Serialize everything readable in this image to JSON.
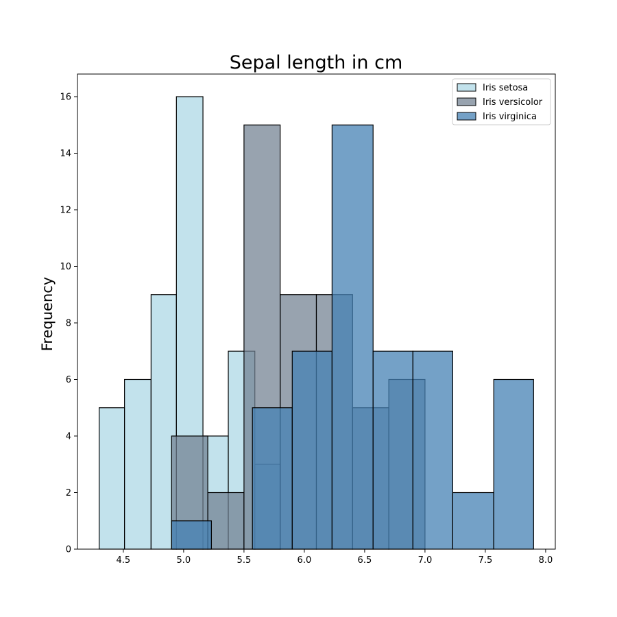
{
  "chart_data": {
    "type": "histogram",
    "title": "Sepal length in cm",
    "xlabel": "",
    "ylabel": "Frequency",
    "xlim": [
      4.12,
      8.08
    ],
    "ylim": [
      0,
      16.8
    ],
    "xticks": [
      "4.5",
      "5.0",
      "5.5",
      "6.0",
      "6.5",
      "7.0",
      "7.5",
      "8.0"
    ],
    "yticks": [
      "0",
      "2",
      "4",
      "6",
      "8",
      "10",
      "12",
      "14",
      "16"
    ],
    "grid": false,
    "legend_position": "top-right",
    "series": [
      {
        "name": "Iris setosa",
        "color": "#add8e6",
        "opacity": 0.75,
        "bins": [
          {
            "x0": 4.3,
            "x1": 4.51,
            "count": 5
          },
          {
            "x0": 4.51,
            "x1": 4.73,
            "count": 6
          },
          {
            "x0": 4.73,
            "x1": 4.94,
            "count": 9
          },
          {
            "x0": 4.94,
            "x1": 5.16,
            "count": 16
          },
          {
            "x0": 5.16,
            "x1": 5.37,
            "count": 4
          },
          {
            "x0": 5.37,
            "x1": 5.59,
            "count": 7
          },
          {
            "x0": 5.59,
            "x1": 5.8,
            "count": 3
          }
        ]
      },
      {
        "name": "Iris versicolor",
        "color": "#708090",
        "opacity": 0.72,
        "bins": [
          {
            "x0": 4.9,
            "x1": 5.2,
            "count": 4
          },
          {
            "x0": 5.2,
            "x1": 5.5,
            "count": 2
          },
          {
            "x0": 5.5,
            "x1": 5.8,
            "count": 15
          },
          {
            "x0": 5.8,
            "x1": 6.1,
            "count": 9
          },
          {
            "x0": 6.1,
            "x1": 6.4,
            "count": 9
          },
          {
            "x0": 6.4,
            "x1": 6.7,
            "count": 5
          },
          {
            "x0": 6.7,
            "x1": 7.0,
            "count": 6
          }
        ]
      },
      {
        "name": "Iris virginica",
        "color": "#4682b4",
        "opacity": 0.75,
        "bins": [
          {
            "x0": 4.9,
            "x1": 5.23,
            "count": 1
          },
          {
            "x0": 5.57,
            "x1": 5.9,
            "count": 5
          },
          {
            "x0": 5.9,
            "x1": 6.23,
            "count": 7
          },
          {
            "x0": 6.23,
            "x1": 6.57,
            "count": 15
          },
          {
            "x0": 6.57,
            "x1": 6.9,
            "count": 7
          },
          {
            "x0": 6.9,
            "x1": 7.23,
            "count": 7
          },
          {
            "x0": 7.23,
            "x1": 7.57,
            "count": 2
          },
          {
            "x0": 7.57,
            "x1": 7.9,
            "count": 6
          }
        ]
      }
    ]
  }
}
